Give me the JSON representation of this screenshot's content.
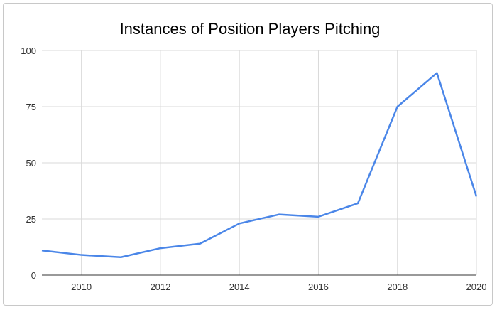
{
  "chart_data": {
    "type": "line",
    "title": "Instances of Position Players Pitching",
    "xlabel": "",
    "ylabel": "",
    "x": [
      2009,
      2010,
      2011,
      2012,
      2013,
      2014,
      2015,
      2016,
      2017,
      2018,
      2019,
      2020
    ],
    "series": [
      {
        "values": [
          11,
          9,
          8,
          12,
          14,
          23,
          27,
          26,
          32,
          75,
          90,
          35
        ],
        "color": "#4a86e8"
      }
    ],
    "xlim": [
      2009,
      2020
    ],
    "ylim": [
      0,
      100
    ],
    "xticks": [
      "2010",
      "2012",
      "2014",
      "2016",
      "2018",
      "2020"
    ],
    "yticks": [
      "0",
      "25",
      "50",
      "75",
      "100"
    ],
    "grid": true,
    "legend": "none"
  }
}
